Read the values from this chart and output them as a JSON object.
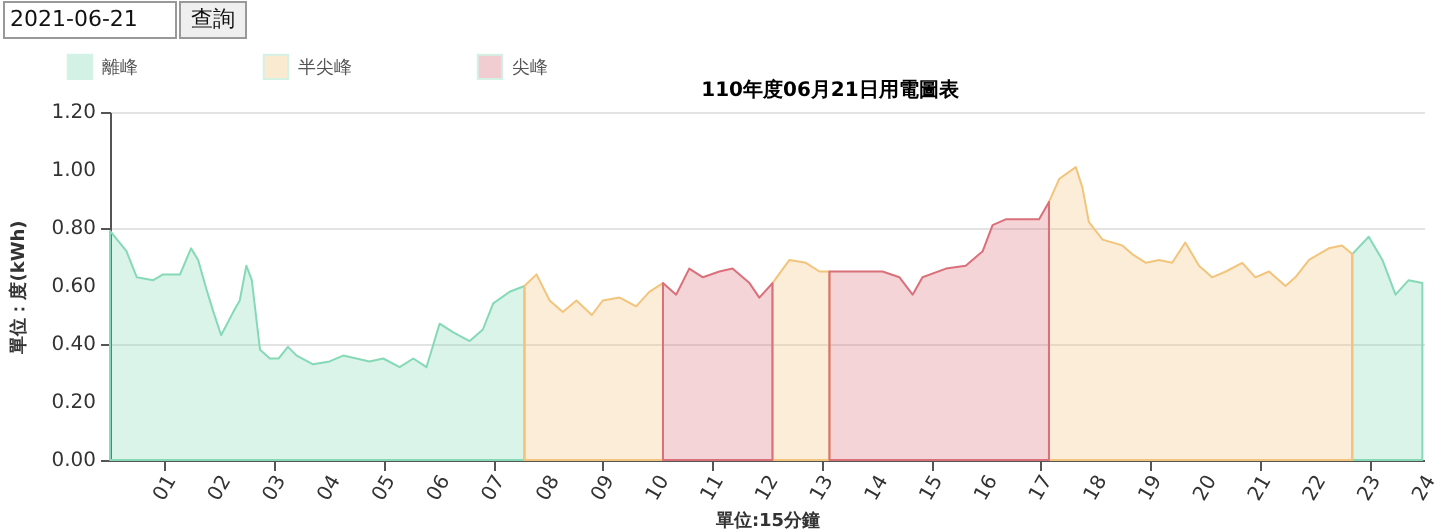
{
  "chart_data": {
    "type": "area",
    "title": "110年度06月21日用電圖表",
    "xlabel": "單位:15分鐘",
    "ylabel": "單位：度(kWh)",
    "annotations": [
      "2021-06-21",
      "查詢"
    ],
    "xlim": [
      0,
      24
    ],
    "ylim": [
      0,
      1.2
    ],
    "xticks": [
      {
        "value": 1,
        "label": "01"
      },
      {
        "value": 2,
        "label": "02"
      },
      {
        "value": 3,
        "label": "03"
      },
      {
        "value": 4,
        "label": "04"
      },
      {
        "value": 5,
        "label": "05"
      },
      {
        "value": 6,
        "label": "06"
      },
      {
        "value": 7,
        "label": "07"
      },
      {
        "value": 8,
        "label": "08"
      },
      {
        "value": 9,
        "label": "09"
      },
      {
        "value": 10,
        "label": "10"
      },
      {
        "value": 11,
        "label": "11"
      },
      {
        "value": 12,
        "label": "12"
      },
      {
        "value": 13,
        "label": "13"
      },
      {
        "value": 14,
        "label": "14"
      },
      {
        "value": 15,
        "label": "15"
      },
      {
        "value": 16,
        "label": "16"
      },
      {
        "value": 17,
        "label": "17"
      },
      {
        "value": 18,
        "label": "18"
      },
      {
        "value": 19,
        "label": "19"
      },
      {
        "value": 20,
        "label": "20"
      },
      {
        "value": 21,
        "label": "21"
      },
      {
        "value": 22,
        "label": "22"
      },
      {
        "value": 23,
        "label": "23"
      },
      {
        "value": 24,
        "label": "24"
      }
    ],
    "yticks": [
      {
        "value": 0,
        "label": "0.00"
      },
      {
        "value": 0.2,
        "label": "0.20"
      },
      {
        "value": 0.4,
        "label": "0.40"
      },
      {
        "value": 0.6,
        "label": "0.60"
      },
      {
        "value": 0.8,
        "label": "0.80"
      },
      {
        "value": 1.0,
        "label": "1.00"
      },
      {
        "value": 1.2,
        "label": "1.20"
      }
    ],
    "grid": "y",
    "legend": "top left",
    "marker": "none",
    "series": [
      {
        "name": "離峰",
        "color": "#86d9b6",
        "x": [
          0,
          0.3,
          0.49,
          0.79,
          0.97,
          1.28,
          1.48,
          1.61,
          1.76,
          1.89,
          2.03,
          2.25,
          2.37,
          2.49,
          2.59,
          2.74,
          2.92,
          3.08,
          3.25,
          3.41,
          3.71,
          4.01,
          4.26,
          4.5,
          4.74,
          4.99,
          5.29,
          5.54,
          5.78,
          6.02,
          6.27,
          6.57,
          6.81,
          7.0,
          7.3,
          7.57,
          15,
          22.69,
          22.99,
          23.24,
          23.48,
          23.72,
          23.97
        ],
        "values": [
          0.79,
          0.72,
          0.63,
          0.62,
          0.64,
          0.64,
          0.73,
          0.69,
          0.59,
          0.51,
          0.43,
          0.51,
          0.55,
          0.67,
          0.62,
          0.38,
          0.35,
          0.35,
          0.39,
          0.36,
          0.33,
          0.34,
          0.36,
          0.35,
          0.34,
          0.35,
          0.32,
          0.35,
          0.32,
          0.47,
          0.44,
          0.41,
          0.45,
          0.54,
          0.58,
          0.6,
          null,
          0.71,
          0.77,
          0.69,
          0.57,
          0.62,
          0.61
        ]
      },
      {
        "name": "半尖峰",
        "color": "#f2c47c",
        "x": [
          7.57,
          7.79,
          8.03,
          8.27,
          8.52,
          8.8,
          9.0,
          9.31,
          9.61,
          9.85,
          10.1,
          11,
          12.1,
          12.41,
          12.71,
          12.96,
          13.14,
          15,
          17.15,
          17.34,
          17.64,
          17.76,
          17.88,
          18.13,
          18.49,
          18.67,
          18.92,
          19.16,
          19.4,
          19.64,
          19.89,
          20.13,
          20.38,
          20.68,
          20.92,
          21.17,
          21.47,
          21.65,
          21.9,
          22.26,
          22.5,
          22.69
        ],
        "values": [
          0.6,
          0.64,
          0.55,
          0.51,
          0.55,
          0.5,
          0.55,
          0.56,
          0.53,
          0.58,
          0.61,
          null,
          0.61,
          0.69,
          0.68,
          0.65,
          0.65,
          null,
          0.89,
          0.97,
          1.01,
          0.94,
          0.82,
          0.76,
          0.74,
          0.71,
          0.68,
          0.69,
          0.68,
          0.75,
          0.67,
          0.63,
          0.65,
          0.68,
          0.63,
          0.65,
          0.6,
          0.63,
          0.69,
          0.73,
          0.74,
          0.71
        ]
      },
      {
        "name": "尖峰",
        "color": "#d9707a",
        "x": [
          10.1,
          10.34,
          10.58,
          10.83,
          11.13,
          11.37,
          11.68,
          11.86,
          12.1,
          12.6,
          13.14,
          13.57,
          14.11,
          14.42,
          14.66,
          14.84,
          15.27,
          15.63,
          15.94,
          16.12,
          16.36,
          16.97,
          17.15
        ],
        "values": [
          0.61,
          0.57,
          0.66,
          0.63,
          0.65,
          0.66,
          0.61,
          0.56,
          0.61,
          null,
          0.65,
          0.65,
          0.65,
          0.63,
          0.57,
          0.63,
          0.66,
          0.67,
          0.72,
          0.81,
          0.83,
          0.83,
          0.89
        ]
      }
    ]
  }
}
